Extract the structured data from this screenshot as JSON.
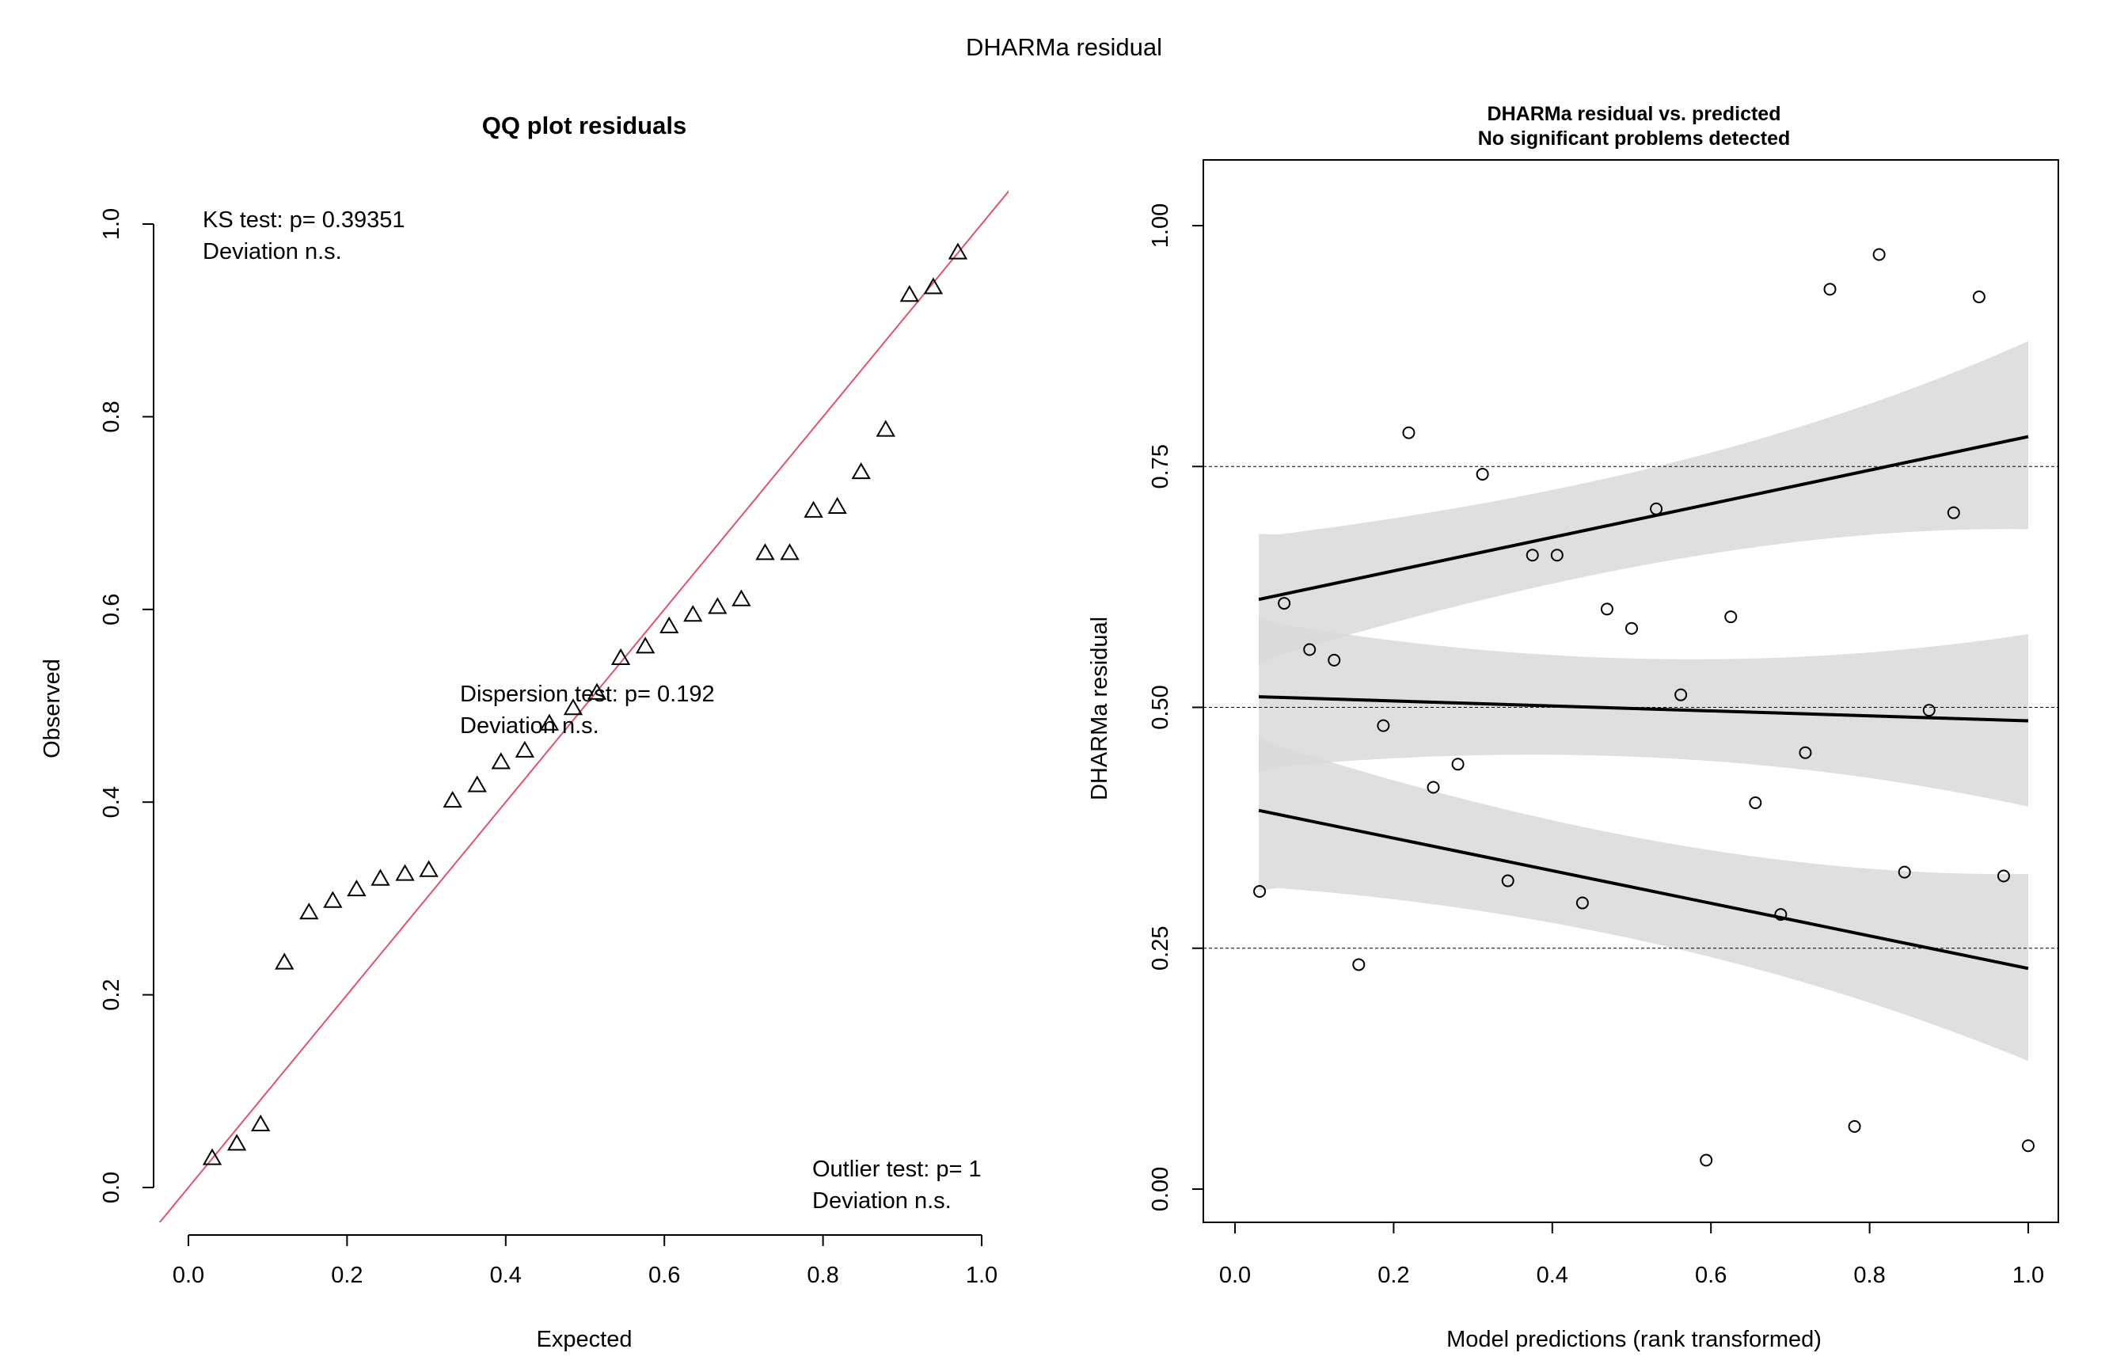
{
  "main_title": "DHARMa residual",
  "colors": {
    "identity_line": "#DF536B",
    "band_fill": "#d9d9d9",
    "band_overlap": "#bfbfbf",
    "points": "#000000"
  },
  "chart_data": [
    {
      "id": "qq",
      "type": "scatter",
      "title": "QQ plot residuals",
      "xlabel": "Expected",
      "ylabel": "Observed",
      "xlim": [
        0,
        1
      ],
      "ylim": [
        0,
        1
      ],
      "x_ticks": [
        "0.0",
        "0.2",
        "0.4",
        "0.6",
        "0.8",
        "1.0"
      ],
      "y_ticks": [
        "0.0",
        "0.2",
        "0.4",
        "0.6",
        "0.8",
        "1.0"
      ],
      "marker": "triangle",
      "reference_line": "y = x",
      "annotations": {
        "ks_line1": "KS test: p= 0.39351",
        "ks_line2": "Deviation  n.s.",
        "disp_line1": "Dispersion test: p= 0.192",
        "disp_line2": "Deviation  n.s.",
        "out_line1": "Outlier test: p= 1",
        "out_line2": "Deviation  n.s."
      },
      "points": [
        [
          0.03,
          0.03
        ],
        [
          0.061,
          0.045
        ],
        [
          0.091,
          0.065
        ],
        [
          0.121,
          0.233
        ],
        [
          0.152,
          0.285
        ],
        [
          0.182,
          0.297
        ],
        [
          0.212,
          0.309
        ],
        [
          0.242,
          0.32
        ],
        [
          0.273,
          0.325
        ],
        [
          0.303,
          0.329
        ],
        [
          0.333,
          0.401
        ],
        [
          0.364,
          0.417
        ],
        [
          0.394,
          0.441
        ],
        [
          0.424,
          0.453
        ],
        [
          0.455,
          0.481
        ],
        [
          0.485,
          0.497
        ],
        [
          0.515,
          0.513
        ],
        [
          0.545,
          0.549
        ],
        [
          0.576,
          0.561
        ],
        [
          0.606,
          0.582
        ],
        [
          0.636,
          0.594
        ],
        [
          0.667,
          0.602
        ],
        [
          0.697,
          0.61
        ],
        [
          0.727,
          0.658
        ],
        [
          0.758,
          0.658
        ],
        [
          0.788,
          0.702
        ],
        [
          0.818,
          0.706
        ],
        [
          0.848,
          0.742
        ],
        [
          0.879,
          0.786
        ],
        [
          0.909,
          0.926
        ],
        [
          0.939,
          0.934
        ],
        [
          0.97,
          0.97
        ]
      ]
    },
    {
      "id": "resid",
      "type": "scatter",
      "title_line1": "DHARMa residual vs. predicted",
      "title_line2": "No significant problems detected",
      "xlabel": "Model predictions (rank transformed)",
      "ylabel": "DHARMa residual",
      "xlim": [
        0,
        1
      ],
      "ylim": [
        0,
        1
      ],
      "x_ticks": [
        "0.0",
        "0.2",
        "0.4",
        "0.6",
        "0.8",
        "1.0"
      ],
      "y_ticks": [
        "0.00",
        "0.25",
        "0.50",
        "0.75",
        "1.00"
      ],
      "hlines": [
        0.25,
        0.5,
        0.75
      ],
      "marker": "circle",
      "quantile_fits": [
        {
          "q": 0.25,
          "x": [
            0.03,
            1.0
          ],
          "y": [
            0.393,
            0.229
          ],
          "band_lo": [
            0.31,
            0.133
          ],
          "band_hi": [
            0.47,
            0.327
          ]
        },
        {
          "q": 0.5,
          "x": [
            0.03,
            1.0
          ],
          "y": [
            0.511,
            0.486
          ],
          "band_lo": [
            0.433,
            0.397
          ],
          "band_hi": [
            0.594,
            0.576
          ]
        },
        {
          "q": 0.75,
          "x": [
            0.03,
            1.0
          ],
          "y": [
            0.612,
            0.781
          ],
          "band_lo": [
            0.545,
            0.685
          ],
          "band_hi": [
            0.68,
            0.88
          ]
        }
      ],
      "points": [
        [
          0.031,
          0.309
        ],
        [
          0.062,
          0.608
        ],
        [
          0.094,
          0.56
        ],
        [
          0.125,
          0.549
        ],
        [
          0.156,
          0.233
        ],
        [
          0.187,
          0.481
        ],
        [
          0.219,
          0.785
        ],
        [
          0.25,
          0.417
        ],
        [
          0.281,
          0.441
        ],
        [
          0.312,
          0.742
        ],
        [
          0.344,
          0.32
        ],
        [
          0.375,
          0.658
        ],
        [
          0.406,
          0.658
        ],
        [
          0.438,
          0.297
        ],
        [
          0.469,
          0.602
        ],
        [
          0.5,
          0.582
        ],
        [
          0.531,
          0.706
        ],
        [
          0.562,
          0.513
        ],
        [
          0.594,
          0.03
        ],
        [
          0.625,
          0.594
        ],
        [
          0.656,
          0.401
        ],
        [
          0.688,
          0.285
        ],
        [
          0.719,
          0.453
        ],
        [
          0.75,
          0.934
        ],
        [
          0.781,
          0.065
        ],
        [
          0.812,
          0.97
        ],
        [
          0.844,
          0.329
        ],
        [
          0.875,
          0.497
        ],
        [
          0.906,
          0.702
        ],
        [
          0.938,
          0.926
        ],
        [
          0.969,
          0.325
        ],
        [
          1.0,
          0.045
        ]
      ]
    }
  ]
}
